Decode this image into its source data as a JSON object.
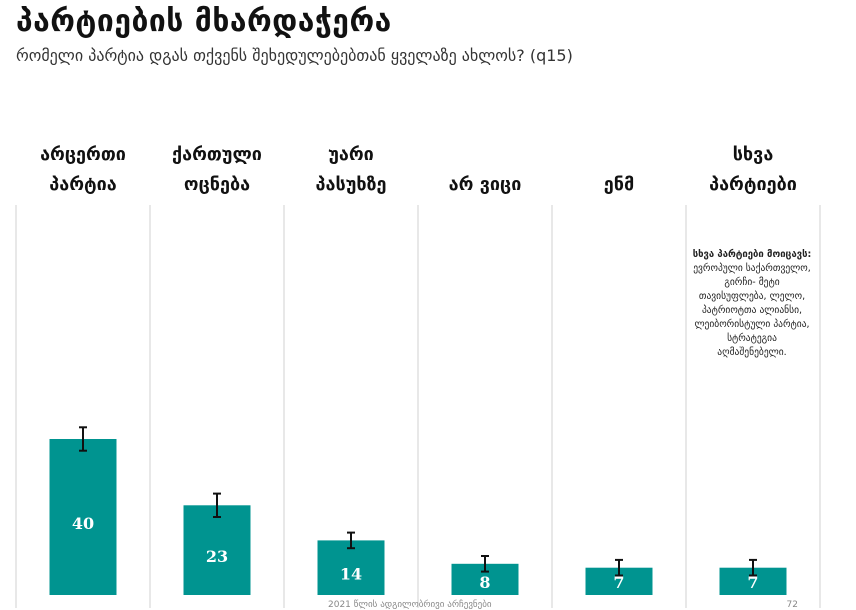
{
  "header": {
    "title": "პარტიების მხარდაჭერა",
    "subtitle": "რომელი პარტია დგას თქვენს შეხედულებებთან ყველაზე ახლოს? (q15)"
  },
  "note": {
    "title": "სხვა პარტიები მოიცავს:",
    "body": "ევროპული საქართველო, გირჩი- მეტი თავისუფლება, ლელო, პატრიოტთა ალიანსი, ლეიბორისტული პარტია, სტრატეგია აღმაშენებელი."
  },
  "footer": {
    "text": "2021 წლის ადგილობრივი არჩევნები",
    "page": "72"
  },
  "colors": {
    "bar": "#009490",
    "divider": "#d0d0d0",
    "error": "#111111"
  },
  "chart_data": {
    "type": "bar",
    "title": "პარტიების მხარდაჭერა",
    "subtitle": "რომელი პარტია დგას თქვენს შეხედულებებთან ყველაზე ახლოს? (q15)",
    "categories": [
      [
        "არცერთი",
        "პარტია"
      ],
      [
        "ქართული",
        "ოცნება"
      ],
      [
        "უარი",
        "პასუხზე"
      ],
      [
        "არ ვიცი"
      ],
      [
        "ენმ"
      ],
      [
        "სხვა",
        "პარტიები"
      ]
    ],
    "values": [
      40,
      23,
      14,
      8,
      7,
      7
    ],
    "error_low": [
      37,
      20,
      12,
      6,
      5,
      5
    ],
    "error_high": [
      43,
      26,
      16,
      10,
      9,
      9
    ],
    "ylim": [
      0,
      100
    ],
    "grid": false,
    "data_labels": true
  }
}
